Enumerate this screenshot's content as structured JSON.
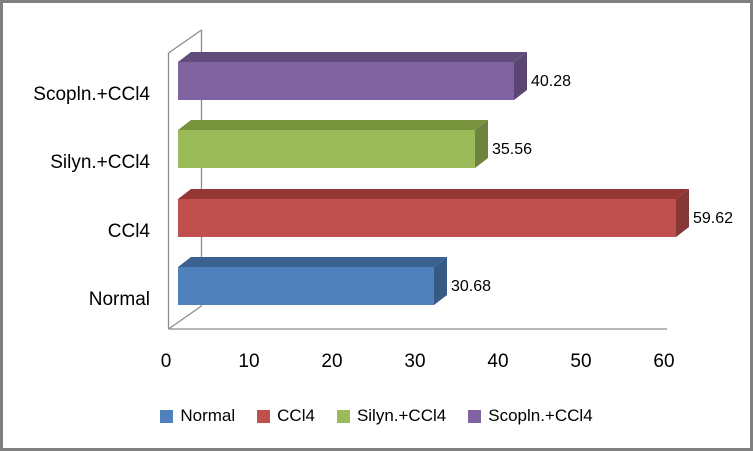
{
  "chart_data": {
    "type": "bar",
    "orientation": "horizontal",
    "style": "3d",
    "title": "",
    "xlabel": "",
    "ylabel": "",
    "categories": [
      "Normal",
      "CCl4",
      "Silyn.+CCl4",
      "Scopln.+CCl4"
    ],
    "values": [
      30.68,
      59.62,
      35.56,
      40.28
    ],
    "series": [
      {
        "name": "Normal",
        "value": 30.68,
        "value_label": "30.68",
        "color": "#4F81BD",
        "color_top": "#3B6190",
        "color_side": "#375A84"
      },
      {
        "name": "CCl4",
        "value": 59.62,
        "value_label": "59.62",
        "color": "#C0504D",
        "color_top": "#943634",
        "color_side": "#863836"
      },
      {
        "name": "Silyn.+CCl4",
        "value": 35.56,
        "value_label": "35.56",
        "color": "#9BBB59",
        "color_top": "#77933C",
        "color_side": "#6D833E"
      },
      {
        "name": "Scopln.+CCl4",
        "value": 40.28,
        "value_label": "40.28",
        "color": "#8064A2",
        "color_top": "#604B7A",
        "color_side": "#5A4671"
      }
    ],
    "x_axis": {
      "min": 0,
      "max": 60,
      "ticks": [
        "0",
        "10",
        "20",
        "30",
        "40",
        "50",
        "60"
      ]
    },
    "legend": {
      "position": "bottom"
    },
    "grid": false,
    "colors": {
      "axis_line": "#8C8C8C",
      "text": "#000000",
      "frame_border": "#808080",
      "background": "#FFFFFF"
    }
  }
}
